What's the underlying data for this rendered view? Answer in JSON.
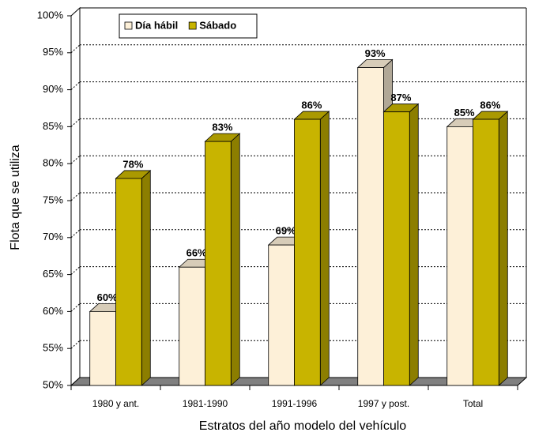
{
  "chart_data": {
    "type": "bar3d",
    "x_label": "Estratos del año modelo del vehículo",
    "y_label": "Flota que se utiliza",
    "categories": [
      "1980 y ant.",
      "1981-1990",
      "1991-1996",
      "1997 y post.",
      "Total"
    ],
    "series": [
      {
        "name": "Día hábil",
        "color": "#fdf0d8",
        "values": [
          60,
          66,
          69,
          93,
          85
        ],
        "value_labels": [
          "60%",
          "66%",
          "69%",
          "93%",
          "85%"
        ]
      },
      {
        "name": "Sábado",
        "color": "#c8b400",
        "values": [
          78,
          83,
          86,
          87,
          86
        ],
        "value_labels": [
          "78%",
          "83%",
          "86%",
          "87%",
          "86%"
        ]
      }
    ],
    "ylim": [
      50,
      100
    ],
    "yticks": [
      {
        "value": 50,
        "label": "50%"
      },
      {
        "value": 55,
        "label": "55%"
      },
      {
        "value": 60,
        "label": "60%"
      },
      {
        "value": 65,
        "label": "65%"
      },
      {
        "value": 70,
        "label": "70%"
      },
      {
        "value": 75,
        "label": "75%"
      },
      {
        "value": 80,
        "label": "80%"
      },
      {
        "value": 85,
        "label": "85%"
      },
      {
        "value": 90,
        "label": "90%"
      },
      {
        "value": 95,
        "label": "95%"
      },
      {
        "value": 100,
        "label": "100%"
      }
    ],
    "grid": true,
    "legend": "top"
  }
}
